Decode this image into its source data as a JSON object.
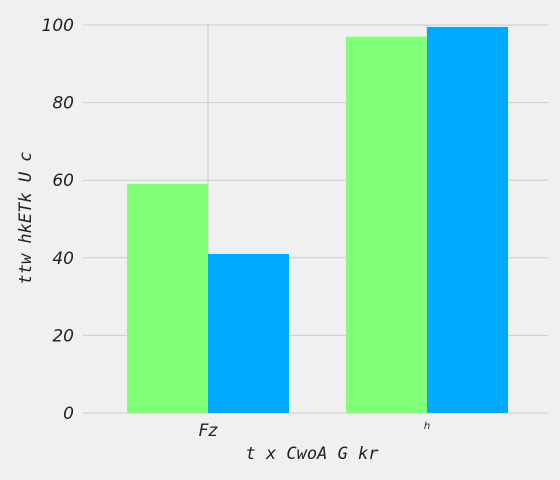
{
  "chart_data": {
    "type": "bar",
    "categories": [
      "Fz",
      "h"
    ],
    "series": [
      {
        "values": [
          59,
          97
        ]
      },
      {
        "values": [
          41,
          99.5
        ]
      }
    ],
    "title": "",
    "xlabel": "t x CwoA G kr",
    "ylabel": "ttw  hkETk U c",
    "ylim": [
      0,
      100
    ],
    "yticks": [
      "0",
      "20",
      "40",
      "60",
      "80",
      "100"
    ],
    "grid": true,
    "legend": "none",
    "colors": [
      "#80ff77",
      "#00aaff"
    ],
    "background": "#f0f0f0",
    "grid_color": "#cbcbcb"
  }
}
